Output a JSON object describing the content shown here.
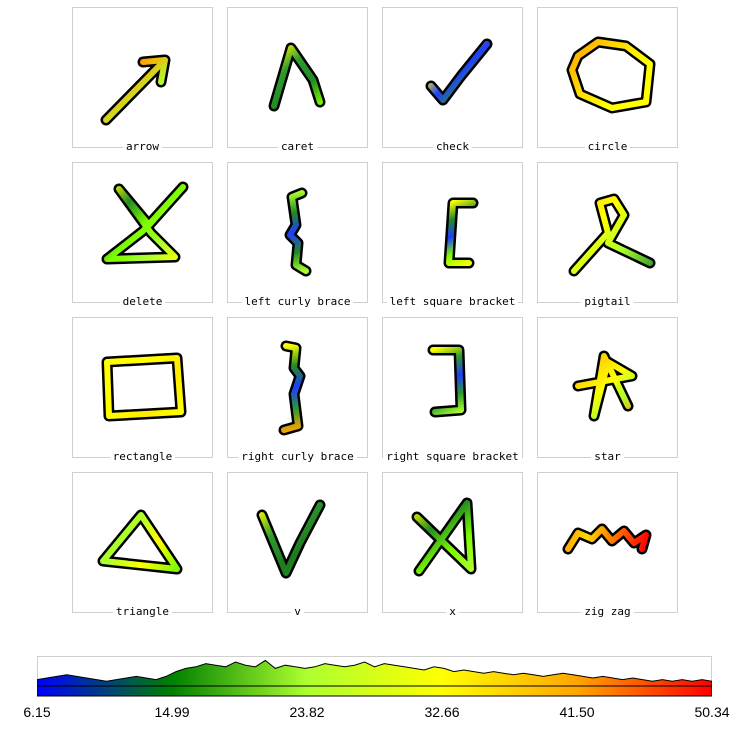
{
  "gestures": [
    {
      "label": "arrow"
    },
    {
      "label": "caret"
    },
    {
      "label": "check"
    },
    {
      "label": "circle"
    },
    {
      "label": "delete"
    },
    {
      "label": "left curly brace"
    },
    {
      "label": "left square bracket"
    },
    {
      "label": "pigtail"
    },
    {
      "label": "rectangle"
    },
    {
      "label": "right curly brace"
    },
    {
      "label": "right square bracket"
    },
    {
      "label": "star"
    },
    {
      "label": "triangle"
    },
    {
      "label": "v"
    },
    {
      "label": "x"
    },
    {
      "label": "zig zag"
    }
  ],
  "colorbar": {
    "min": 6.15,
    "max": 50.34,
    "ticks": [
      "6.15",
      "14.99",
      "23.82",
      "32.66",
      "41.50",
      "50.34"
    ],
    "colors": [
      "#0000ff",
      "#008000",
      "#adff2f",
      "#ffff00",
      "#ffa500",
      "#ff0000"
    ]
  }
}
